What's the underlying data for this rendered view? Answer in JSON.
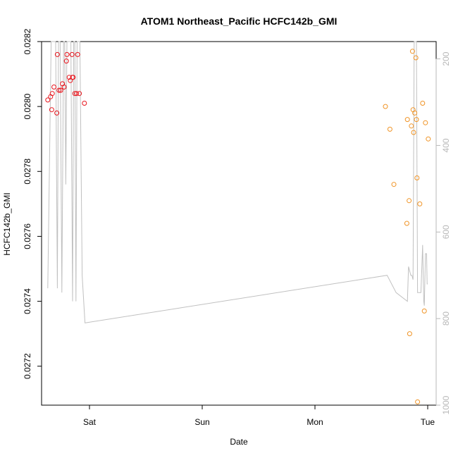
{
  "chart_data": {
    "type": "scatter",
    "title": "ATOM1 Northeast_Pacific HCFC142b_GMI",
    "xlabel": "Date",
    "ylabel": "HCFC142b_GMI",
    "x_ticks": [
      {
        "label": "Sat",
        "value": 1.0
      },
      {
        "label": "Sun",
        "value": 2.0
      },
      {
        "label": "Mon",
        "value": 3.0
      },
      {
        "label": "Tue",
        "value": 4.0
      }
    ],
    "xlim": [
      0.575,
      4.075
    ],
    "ylim": [
      0.02708,
      0.0282
    ],
    "y_ticks": [
      0.0272,
      0.0274,
      0.0276,
      0.0278,
      0.028,
      0.0282
    ],
    "y_tick_labels": [
      "0.0272",
      "0.0274",
      "0.0276",
      "0.0278",
      "0.0280",
      "0.0282"
    ],
    "y2_label": "",
    "y2lim": [
      1000,
      160
    ],
    "y2_ticks": [
      200,
      400,
      600,
      800,
      1000
    ],
    "y2_tick_labels": [
      "200",
      "400",
      "600",
      "800",
      "1000"
    ],
    "grid": false,
    "series": [
      {
        "color": "#e8141c",
        "marker": "circle-open",
        "points": [
          [
            0.63,
            0.02802
          ],
          [
            0.655,
            0.02803
          ],
          [
            0.665,
            0.02799
          ],
          [
            0.67,
            0.02804
          ],
          [
            0.685,
            0.02806
          ],
          [
            0.71,
            0.02798
          ],
          [
            0.715,
            0.02816
          ],
          [
            0.73,
            0.02805
          ],
          [
            0.745,
            0.02805
          ],
          [
            0.76,
            0.02807
          ],
          [
            0.775,
            0.02806
          ],
          [
            0.795,
            0.02814
          ],
          [
            0.8,
            0.02816
          ],
          [
            0.82,
            0.02809
          ],
          [
            0.83,
            0.02808
          ],
          [
            0.845,
            0.02816
          ],
          [
            0.85,
            0.02809
          ],
          [
            0.855,
            0.02809
          ],
          [
            0.87,
            0.02804
          ],
          [
            0.885,
            0.02804
          ],
          [
            0.895,
            0.02816
          ],
          [
            0.91,
            0.02804
          ],
          [
            0.955,
            0.02801
          ]
        ]
      },
      {
        "color": "#f09426",
        "marker": "circle-open",
        "points": [
          [
            3.625,
            0.028
          ],
          [
            3.665,
            0.02793
          ],
          [
            3.7,
            0.02776
          ],
          [
            3.815,
            0.02764
          ],
          [
            3.82,
            0.02796
          ],
          [
            3.835,
            0.02771
          ],
          [
            3.84,
            0.0273
          ],
          [
            3.855,
            0.02794
          ],
          [
            3.865,
            0.02817
          ],
          [
            3.87,
            0.02799
          ],
          [
            3.875,
            0.02792
          ],
          [
            3.885,
            0.02798
          ],
          [
            3.895,
            0.02815
          ],
          [
            3.9,
            0.02796
          ],
          [
            3.905,
            0.02778
          ],
          [
            3.91,
            0.02709
          ],
          [
            3.93,
            0.0277
          ],
          [
            3.955,
            0.02801
          ],
          [
            3.97,
            0.02737
          ],
          [
            3.98,
            0.02795
          ],
          [
            4.005,
            0.0279
          ]
        ]
      }
    ],
    "altitude_line": {
      "color": "#c0c0c0",
      "axis": "right",
      "points": [
        [
          0.63,
          730
        ],
        [
          0.66,
          100
        ],
        [
          0.69,
          100
        ],
        [
          0.7,
          100
        ],
        [
          0.715,
          730
        ],
        [
          0.725,
          100
        ],
        [
          0.74,
          100
        ],
        [
          0.755,
          740
        ],
        [
          0.77,
          100
        ],
        [
          0.78,
          100
        ],
        [
          0.79,
          490
        ],
        [
          0.8,
          100
        ],
        [
          0.815,
          100
        ],
        [
          0.835,
          100
        ],
        [
          0.85,
          760
        ],
        [
          0.86,
          100
        ],
        [
          0.87,
          100
        ],
        [
          0.88,
          760
        ],
        [
          0.89,
          100
        ],
        [
          0.9,
          100
        ],
        [
          0.915,
          100
        ],
        [
          0.935,
          700
        ],
        [
          0.96,
          810
        ],
        [
          3.64,
          700
        ],
        [
          3.72,
          740
        ],
        [
          3.82,
          760
        ],
        [
          3.83,
          680
        ],
        [
          3.85,
          700
        ],
        [
          3.86,
          700
        ],
        [
          3.87,
          710
        ],
        [
          3.88,
          100
        ],
        [
          3.89,
          100
        ],
        [
          3.9,
          100
        ],
        [
          3.91,
          740
        ],
        [
          3.92,
          740
        ],
        [
          3.93,
          740
        ],
        [
          3.94,
          740
        ],
        [
          3.955,
          630
        ],
        [
          3.965,
          760
        ],
        [
          3.97,
          770
        ],
        [
          3.98,
          650
        ],
        [
          3.99,
          650
        ],
        [
          3.995,
          720
        ],
        [
          4.0,
          720
        ]
      ]
    }
  }
}
